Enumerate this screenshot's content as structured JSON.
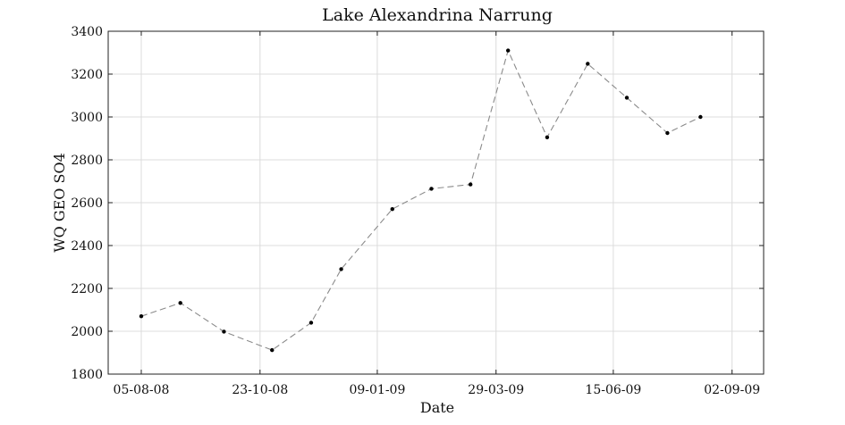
{
  "chart_data": {
    "type": "line",
    "title": "Lake Alexandrina Narrung",
    "xlabel": "Date",
    "ylabel": "WQ GEO SO4",
    "ylim": [
      1800,
      3400
    ],
    "xlim": [
      "2008-07-14",
      "2009-09-23"
    ],
    "grid": true,
    "yticks": [
      1800,
      2000,
      2200,
      2400,
      2600,
      2800,
      3000,
      3200,
      3400
    ],
    "xticks": [
      {
        "date": "2008-08-05",
        "label": "05-08-08"
      },
      {
        "date": "2008-10-23",
        "label": "23-10-08"
      },
      {
        "date": "2009-01-09",
        "label": "09-01-09"
      },
      {
        "date": "2009-03-29",
        "label": "29-03-09"
      },
      {
        "date": "2009-06-15",
        "label": "15-06-09"
      },
      {
        "date": "2009-09-02",
        "label": "02-09-09"
      }
    ],
    "series": [
      {
        "line_style": "dashed",
        "color": "#8a8a8a",
        "marker_color": "#000000",
        "points": [
          {
            "x": "2008-08-05",
            "y": 2070
          },
          {
            "x": "2008-08-31",
            "y": 2132
          },
          {
            "x": "2008-09-29",
            "y": 1998
          },
          {
            "x": "2008-10-31",
            "y": 1912
          },
          {
            "x": "2008-11-26",
            "y": 2040
          },
          {
            "x": "2008-12-16",
            "y": 2290
          },
          {
            "x": "2009-01-19",
            "y": 2570
          },
          {
            "x": "2009-02-14",
            "y": 2665
          },
          {
            "x": "2009-03-12",
            "y": 2685
          },
          {
            "x": "2009-04-06",
            "y": 3310
          },
          {
            "x": "2009-05-02",
            "y": 2905
          },
          {
            "x": "2009-05-29",
            "y": 3248
          },
          {
            "x": "2009-06-24",
            "y": 3090
          },
          {
            "x": "2009-07-21",
            "y": 2925
          },
          {
            "x": "2009-08-12",
            "y": 3000
          }
        ]
      }
    ]
  }
}
